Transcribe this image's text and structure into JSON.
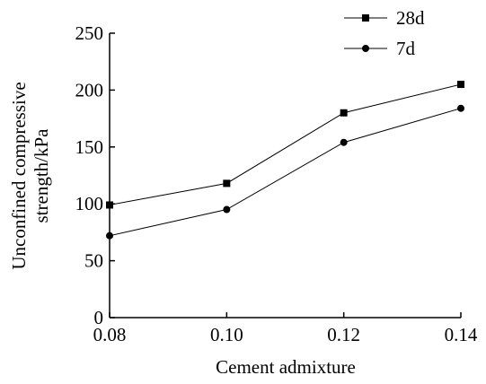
{
  "chart_data": {
    "type": "line",
    "x": [
      0.08,
      0.1,
      0.12,
      0.14
    ],
    "x_tick_labels": [
      "0.08",
      "0.10",
      "0.12",
      "0.14"
    ],
    "y_tick_labels": [
      "0",
      "50",
      "100",
      "150",
      "200",
      "250"
    ],
    "y_ticks": [
      0,
      50,
      100,
      150,
      200,
      250
    ],
    "xlim": [
      0.08,
      0.14
    ],
    "ylim": [
      0,
      250
    ],
    "xlabel": "Cement admixture",
    "ylabel_line1": "Unconfined compressive",
    "ylabel_line2": "strength/kPa",
    "grid": false,
    "legend_position": "top-right",
    "series": [
      {
        "name": "28d",
        "marker": "square",
        "color": "#000000",
        "values": [
          99,
          118,
          180,
          205
        ]
      },
      {
        "name": "7d",
        "marker": "circle",
        "color": "#000000",
        "values": [
          72,
          95,
          154,
          184
        ]
      }
    ]
  }
}
